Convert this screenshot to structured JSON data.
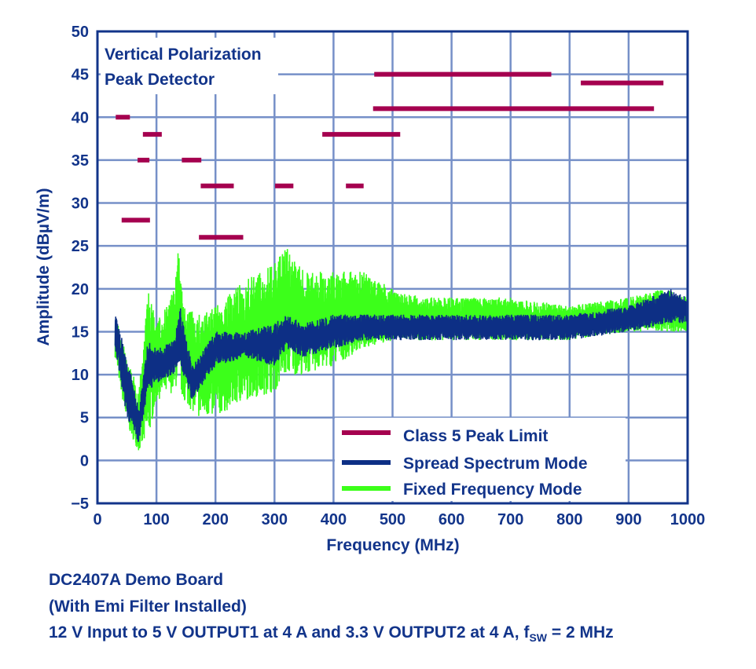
{
  "chart_data": {
    "type": "line",
    "title_lines": [
      "Vertical Polarization",
      "Peak Detector"
    ],
    "xlabel": "Frequency (MHz)",
    "ylabel": "Amplitude (dBµV/m)",
    "xlim": [
      0,
      1000
    ],
    "ylim": [
      -5,
      50
    ],
    "xticks": [
      0,
      100,
      200,
      300,
      400,
      500,
      600,
      700,
      800,
      900,
      1000
    ],
    "yticks": [
      -5,
      0,
      5,
      10,
      15,
      20,
      25,
      30,
      35,
      40,
      45,
      50
    ],
    "ytick_labels": [
      "−5",
      "0",
      "5",
      "10",
      "15",
      "20",
      "25",
      "30",
      "35",
      "40",
      "45",
      "50"
    ],
    "grid": true,
    "legend_position": "bottom-center",
    "colors": {
      "limit": "#a5004f",
      "spread": "#0d2f85",
      "fixed": "#3cff1a",
      "grid": "#7690c8",
      "text": "#12348a"
    },
    "legend": [
      "Class 5 Peak Limit",
      "Spread Spectrum Mode",
      "Fixed Frequency Mode"
    ],
    "limit_segments": [
      {
        "x": [
          31,
          55
        ],
        "y": 40
      },
      {
        "x": [
          77,
          109
        ],
        "y": 38
      },
      {
        "x": [
          381,
          513
        ],
        "y": 38
      },
      {
        "x": [
          68,
          88
        ],
        "y": 35
      },
      {
        "x": [
          143,
          176
        ],
        "y": 35
      },
      {
        "x": [
          175,
          231
        ],
        "y": 32
      },
      {
        "x": [
          301,
          332
        ],
        "y": 32
      },
      {
        "x": [
          421,
          451
        ],
        "y": 32
      },
      {
        "x": [
          41,
          89
        ],
        "y": 28
      },
      {
        "x": [
          172,
          247
        ],
        "y": 26
      },
      {
        "x": [
          469,
          769
        ],
        "y": 45
      },
      {
        "x": [
          819,
          959
        ],
        "y": 44
      },
      {
        "x": [
          467,
          943
        ],
        "y": 41
      }
    ],
    "series": [
      {
        "name": "Fixed Frequency Mode",
        "x": [
          30,
          50,
          70,
          85,
          100,
          130,
          137,
          145,
          170,
          200,
          250,
          300,
          320,
          350,
          400,
          450,
          500,
          550,
          600,
          700,
          800,
          900,
          960,
          1000
        ],
        "low": [
          12,
          4,
          1,
          2,
          7,
          8,
          9,
          7,
          5,
          5,
          7,
          8,
          10,
          10,
          11,
          13,
          14,
          14,
          14,
          14,
          14,
          15,
          15,
          15
        ],
        "high": [
          17,
          12,
          8,
          20,
          16,
          20,
          25,
          18,
          17,
          18,
          21,
          23,
          25,
          22,
          22,
          22,
          20,
          19,
          19,
          19,
          18,
          19,
          20,
          19
        ]
      },
      {
        "name": "Spread Spectrum Mode",
        "x": [
          30,
          50,
          70,
          85,
          100,
          130,
          140,
          160,
          200,
          250,
          300,
          320,
          350,
          400,
          450,
          500,
          550,
          600,
          700,
          800,
          900,
          970,
          1000
        ],
        "low": [
          13,
          5,
          2,
          8,
          9,
          10,
          11,
          7,
          11,
          12,
          11,
          13,
          12,
          13,
          14,
          14,
          14,
          14,
          14,
          14,
          15,
          16,
          16
        ],
        "high": [
          17,
          12,
          6,
          14,
          13,
          14,
          18,
          11,
          15,
          15,
          16,
          17,
          16,
          17,
          17,
          17,
          17,
          17,
          17,
          17,
          18,
          20,
          19
        ]
      }
    ]
  },
  "footer": {
    "line1": "DC2407A Demo Board",
    "line2": "(With Emi Filter Installed)",
    "line3_main": "12 V Input to 5 V OUTPUT1 at 4 A and 3.3 V OUTPUT2 at 4 A, f",
    "line3_sub": "SW",
    "line3_end": " = 2 MHz"
  }
}
